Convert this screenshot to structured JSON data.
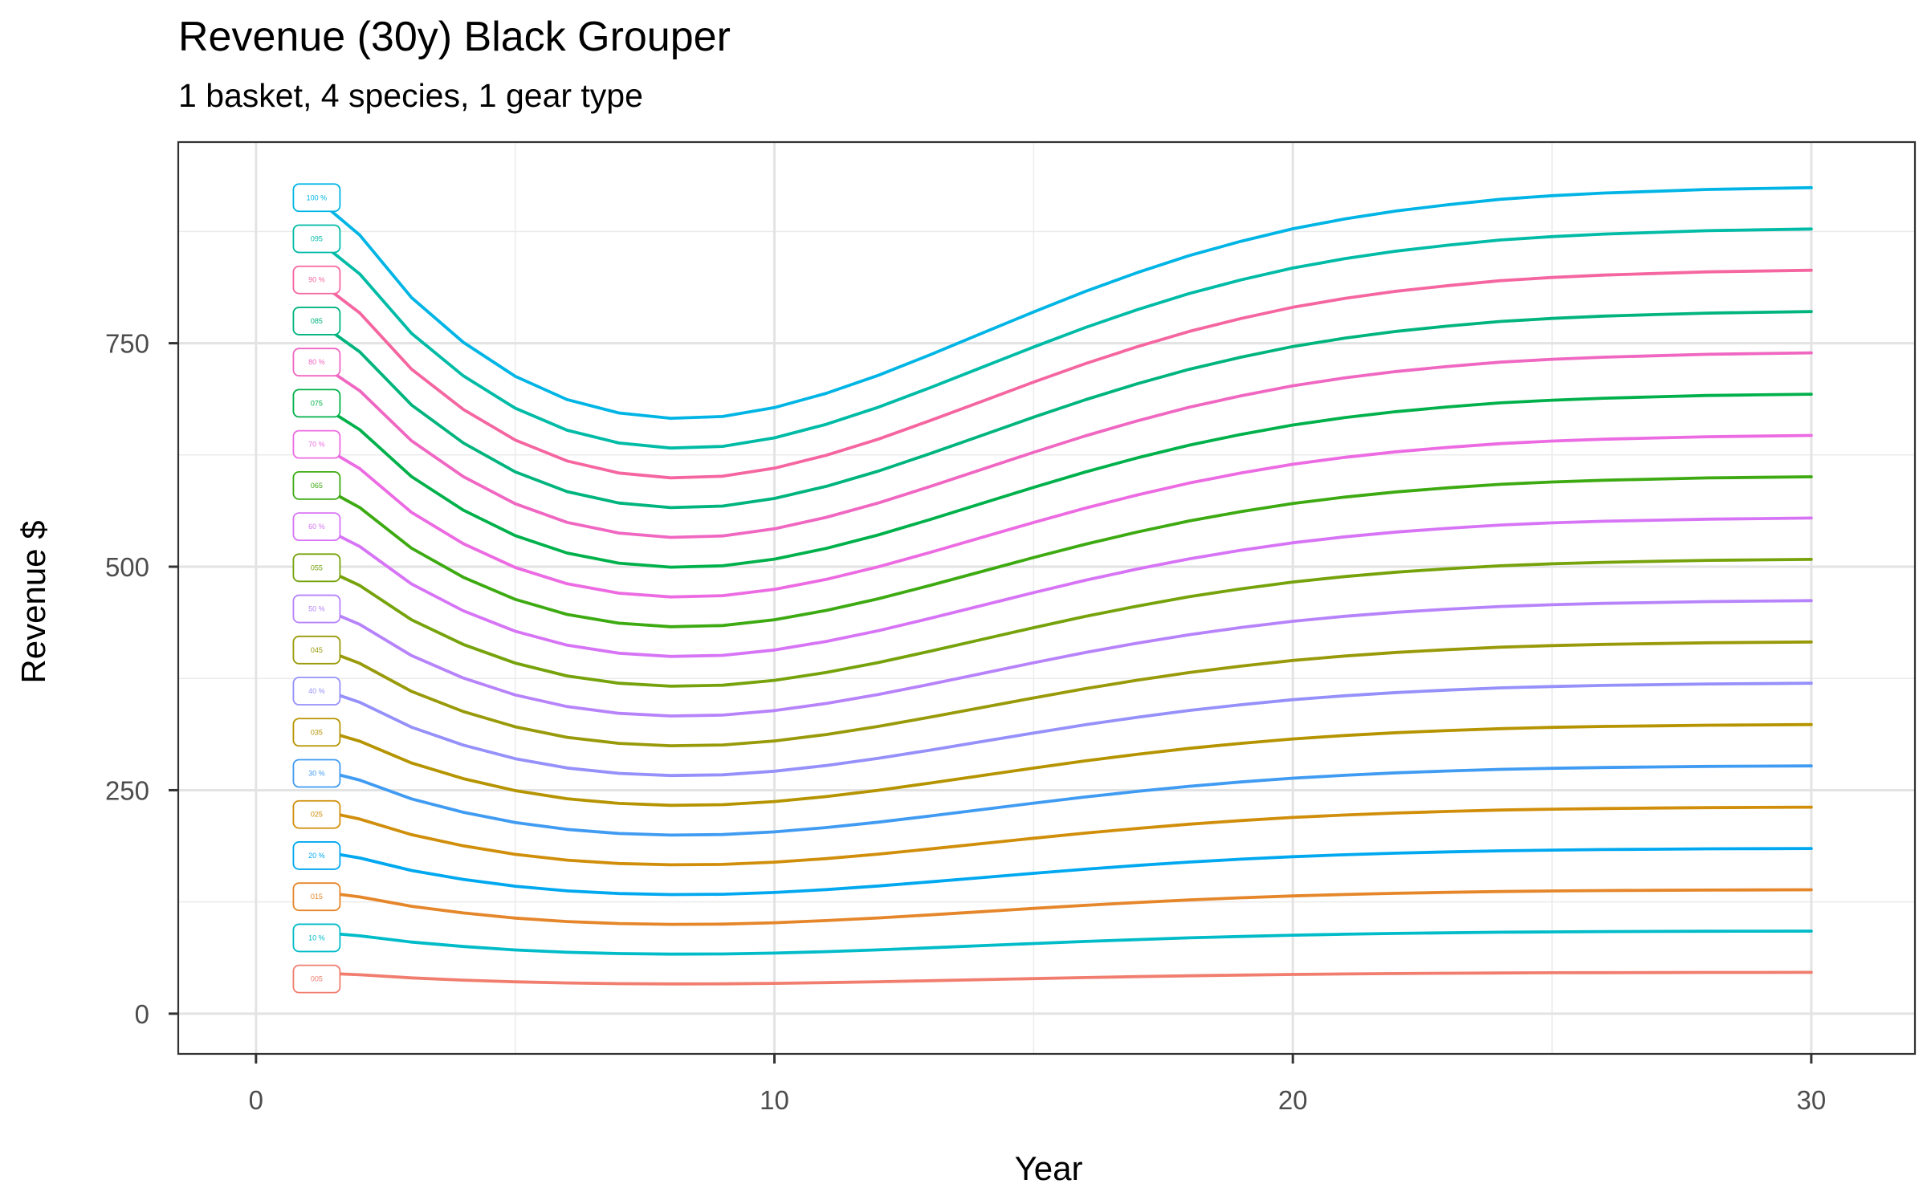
{
  "chart_data": {
    "type": "line",
    "title": "Revenue (30y) Black Grouper",
    "subtitle": "1 basket, 4 species, 1 gear type",
    "xlabel": "Year",
    "ylabel": "Revenue $",
    "xlim": [
      -1.5,
      32
    ],
    "ylim": [
      -45,
      975
    ],
    "x_ticks": [
      0,
      10,
      20,
      30
    ],
    "x_tick_labels": [
      "0",
      "10",
      "20",
      "30"
    ],
    "y_ticks": [
      0,
      250,
      500,
      750
    ],
    "y_tick_labels": [
      "0",
      "250",
      "500",
      "750"
    ],
    "grid": true,
    "legend": "none",
    "x": [
      1,
      2,
      3,
      4,
      5,
      6,
      7,
      8,
      9,
      10,
      11,
      12,
      13,
      14,
      15,
      16,
      17,
      18,
      19,
      20,
      21,
      22,
      23,
      24,
      25,
      26,
      27,
      28,
      29,
      30
    ],
    "base_profile": [
      920,
      871,
      801,
      751,
      713,
      687,
      672,
      666,
      668,
      678,
      694,
      714,
      737,
      761,
      785,
      808,
      829,
      848,
      864,
      878,
      889,
      898,
      905,
      911,
      915,
      918,
      920,
      922,
      923,
      924
    ],
    "series": [
      {
        "name": "100 %",
        "label": "100 %",
        "fraction": 1.0,
        "color": "#00B5E5"
      },
      {
        "name": "095",
        "label": "095",
        "fraction": 0.95,
        "color": "#00BBA6"
      },
      {
        "name": "90 %",
        "label": "90 %",
        "fraction": 0.9,
        "color": "#F566A0"
      },
      {
        "name": "085",
        "label": "085",
        "fraction": 0.85,
        "color": "#00B47E"
      },
      {
        "name": "80 %",
        "label": "80 %",
        "fraction": 0.8,
        "color": "#F067C2"
      },
      {
        "name": "075",
        "label": "075",
        "fraction": 0.75,
        "color": "#00B14B"
      },
      {
        "name": "70 %",
        "label": "70 %",
        "fraction": 0.7,
        "color": "#EC6BE2"
      },
      {
        "name": "065",
        "label": "065",
        "fraction": 0.65,
        "color": "#3DAA12"
      },
      {
        "name": "60 %",
        "label": "60 %",
        "fraction": 0.6,
        "color": "#D774F6"
      },
      {
        "name": "055",
        "label": "055",
        "fraction": 0.55,
        "color": "#76A20B"
      },
      {
        "name": "50 %",
        "label": "50 %",
        "fraction": 0.5,
        "color": "#B783FB"
      },
      {
        "name": "045",
        "label": "045",
        "fraction": 0.45,
        "color": "#999A0A"
      },
      {
        "name": "40 %",
        "label": "40 %",
        "fraction": 0.4,
        "color": "#9590FA"
      },
      {
        "name": "035",
        "label": "035",
        "fraction": 0.35,
        "color": "#B59400"
      },
      {
        "name": "30 %",
        "label": "30 %",
        "fraction": 0.3,
        "color": "#409BF2"
      },
      {
        "name": "025",
        "label": "025",
        "fraction": 0.25,
        "color": "#D08E0A"
      },
      {
        "name": "20 %",
        "label": "20 %",
        "fraction": 0.2,
        "color": "#00A8F0"
      },
      {
        "name": "015",
        "label": "015",
        "fraction": 0.15,
        "color": "#E5862A"
      },
      {
        "name": "10 %",
        "label": "10 %",
        "fraction": 0.1,
        "color": "#00BBC8"
      },
      {
        "name": "005",
        "label": "005",
        "fraction": 0.05,
        "color": "#F17D6F"
      }
    ]
  }
}
